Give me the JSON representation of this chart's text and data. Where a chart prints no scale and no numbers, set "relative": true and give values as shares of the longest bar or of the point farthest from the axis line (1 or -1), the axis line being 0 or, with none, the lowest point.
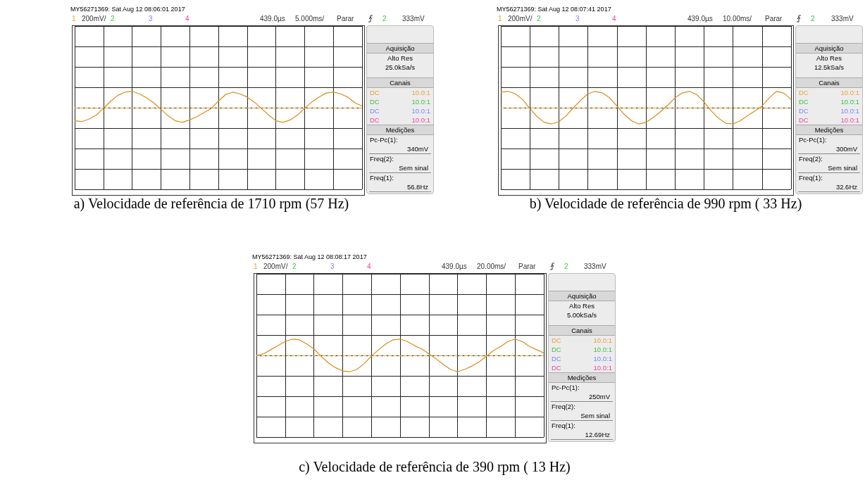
{
  "chart_data": [
    {
      "type": "line",
      "title": "a) Velocidade de referência de 1710 rpm (57 Hz)",
      "relative": true,
      "grid": true,
      "marker": "none",
      "line_style": "solid",
      "categories": [
        null,
        null,
        null,
        null,
        null,
        null,
        null,
        null,
        null,
        null,
        null,
        null,
        null,
        null,
        null,
        null,
        null,
        null,
        null,
        null,
        null,
        null,
        null,
        null,
        null,
        null,
        null,
        null,
        null,
        null,
        null,
        null,
        null,
        null,
        null,
        null,
        null,
        null,
        null,
        null,
        null
      ],
      "series": [
        {
          "color": "#d98c1a",
          "values": [
            -0.8,
            -0.85,
            -0.7,
            -0.45,
            -0.05,
            0.4,
            0.75,
            0.95,
            1.0,
            0.85,
            0.6,
            0.3,
            -0.1,
            -0.5,
            -0.8,
            -0.9,
            -0.75,
            -0.55,
            -0.3,
            -0.05,
            0.4,
            0.8,
            0.95,
            0.85,
            0.65,
            0.35,
            -0.05,
            -0.45,
            -0.8,
            -0.9,
            -0.75,
            -0.45,
            -0.05,
            0.35,
            0.65,
            0.9,
            0.95,
            0.85,
            0.65,
            0.3,
            0.1
          ]
        }
      ],
      "ref_lines": [
        {
          "axis": "y",
          "value": 0,
          "label": null,
          "color": "#f0a030",
          "line_style": "dashed"
        }
      ],
      "annotations": [
        "MY56271369: Sat Aug 12 08:06:01 2017",
        "1",
        "200mV/",
        "2",
        "3",
        "4",
        "439.0µs",
        "5.000ms/",
        "Parar",
        "2",
        "333mV",
        "Aquisição",
        "Alto Res",
        "25.0kSa/s",
        "Canais",
        "DC",
        "10.0:1",
        "DC",
        "10.0:1",
        "DC",
        "10.0:1",
        "DC",
        "10.0:1",
        "Medições",
        "Pc-Pc(1):",
        "340mV",
        "Freq(2):",
        "Sem sinal",
        "Freq(1):",
        "56.8Hz"
      ]
    },
    {
      "type": "line",
      "title": "b) Velocidade de referência de 990 rpm ( 33 Hz)",
      "relative": true,
      "grid": true,
      "marker": "none",
      "line_style": "solid",
      "categories": [
        null,
        null,
        null,
        null,
        null,
        null,
        null,
        null,
        null,
        null,
        null,
        null,
        null,
        null,
        null,
        null,
        null,
        null,
        null,
        null,
        null,
        null,
        null,
        null,
        null,
        null,
        null,
        null,
        null,
        null,
        null,
        null,
        null,
        null,
        null,
        null,
        null,
        null,
        null,
        null,
        null
      ],
      "series": [
        {
          "color": "#d98c1a",
          "values": [
            0.95,
            1.0,
            0.85,
            0.5,
            -0.05,
            -0.55,
            -0.9,
            -1.0,
            -0.85,
            -0.5,
            0.0,
            0.45,
            0.85,
            1.0,
            0.9,
            0.6,
            0.1,
            -0.4,
            -0.8,
            -1.0,
            -0.9,
            -0.6,
            -0.25,
            0.15,
            0.6,
            0.9,
            1.0,
            0.8,
            0.35,
            -0.2,
            -0.65,
            -0.95,
            -1.0,
            -0.8,
            -0.5,
            -0.2,
            0.1,
            0.6,
            1.0,
            0.9,
            0.5
          ]
        }
      ],
      "ref_lines": [
        {
          "axis": "y",
          "value": 0,
          "label": null,
          "color": "#f0a030",
          "line_style": "dashed"
        }
      ],
      "annotations": [
        "MY56271369: Sat Aug 12 08:07:41 2017",
        "1",
        "200mV/",
        "2",
        "3",
        "4",
        "439.0µs",
        "10.00ms/",
        "Parar",
        "2",
        "333mV",
        "Aquisição",
        "Alto Res",
        "12.5kSa/s",
        "Canais",
        "DC",
        "10.0:1",
        "DC",
        "10.0:1",
        "DC",
        "10.0:1",
        "DC",
        "10.0:1",
        "Medições",
        "Pc-Pc(1):",
        "300mV",
        "Freq(2):",
        "Sem sinal",
        "Freq(1):",
        "32.6Hz"
      ]
    },
    {
      "type": "line",
      "title": "c) Velocidade de referência de 390 rpm ( 13 Hz)",
      "relative": true,
      "grid": true,
      "marker": "none",
      "line_style": "solid",
      "categories": [
        null,
        null,
        null,
        null,
        null,
        null,
        null,
        null,
        null,
        null,
        null,
        null,
        null,
        null,
        null,
        null,
        null,
        null,
        null,
        null,
        null,
        null,
        null,
        null,
        null,
        null,
        null,
        null,
        null,
        null,
        null,
        null,
        null,
        null,
        null,
        null,
        null,
        null,
        null,
        null,
        null
      ],
      "series": [
        {
          "color": "#d98c1a",
          "values": [
            0.0,
            0.1,
            0.35,
            0.6,
            0.85,
            1.0,
            0.95,
            0.7,
            0.4,
            -0.05,
            -0.45,
            -0.75,
            -0.95,
            -1.0,
            -0.85,
            -0.5,
            -0.05,
            0.35,
            0.7,
            0.95,
            1.0,
            0.85,
            0.6,
            0.4,
            0.1,
            -0.2,
            -0.55,
            -0.85,
            -1.0,
            -0.85,
            -0.65,
            -0.4,
            -0.05,
            0.3,
            0.55,
            0.85,
            1.0,
            0.85,
            0.55,
            0.35,
            0.15
          ]
        }
      ],
      "ref_lines": [
        {
          "axis": "y",
          "value": 0,
          "label": null,
          "color": "#f0a030",
          "line_style": "dashed"
        }
      ],
      "annotations": [
        "MY56271369: Sat Aug 12 08:08:17 2017",
        "1",
        "200mV/",
        "2",
        "3",
        "4",
        "439.0µs",
        "20.00ms/",
        "Parar",
        "2",
        "333mV",
        "Aquisição",
        "Alto Res",
        "5.00kSa/s",
        "Canais",
        "DC",
        "10.0:1",
        "DC",
        "10.0:1",
        "DC",
        "10.0:1",
        "DC",
        "10.0:1",
        "Medições",
        "Pc-Pc(1):",
        "250mV",
        "Freq(2):",
        "Sem sinal",
        "Freq(1):",
        "12.69Hz"
      ]
    }
  ]
}
